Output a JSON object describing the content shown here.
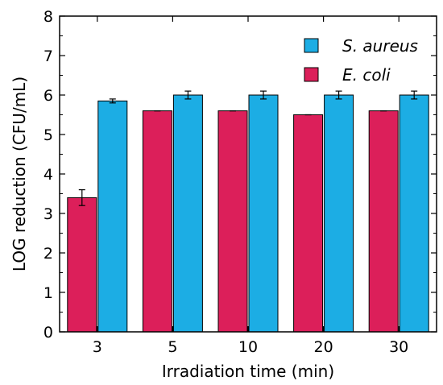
{
  "chart_data": {
    "type": "bar",
    "categories": [
      "3",
      "5",
      "10",
      "20",
      "30"
    ],
    "series": [
      {
        "name": "E. coli",
        "color": "#dc1f5a",
        "values": [
          3.4,
          5.6,
          5.6,
          5.5,
          5.6
        ],
        "errors": [
          0.2,
          0.0,
          0.0,
          0.0,
          0.0
        ]
      },
      {
        "name": "S. aureus",
        "color": "#1cade4",
        "values": [
          5.85,
          6.0,
          6.0,
          6.0,
          6.0
        ],
        "errors": [
          0.05,
          0.1,
          0.1,
          0.1,
          0.1
        ]
      }
    ],
    "title": "",
    "xlabel": "Irradiation time (min)",
    "ylabel": "LOG reduction (CFU/mL)",
    "ylim": [
      0,
      8
    ],
    "yticks": [
      0,
      1,
      2,
      3,
      4,
      5,
      6,
      7,
      8
    ],
    "grid": false,
    "legend_position": "top-right"
  }
}
